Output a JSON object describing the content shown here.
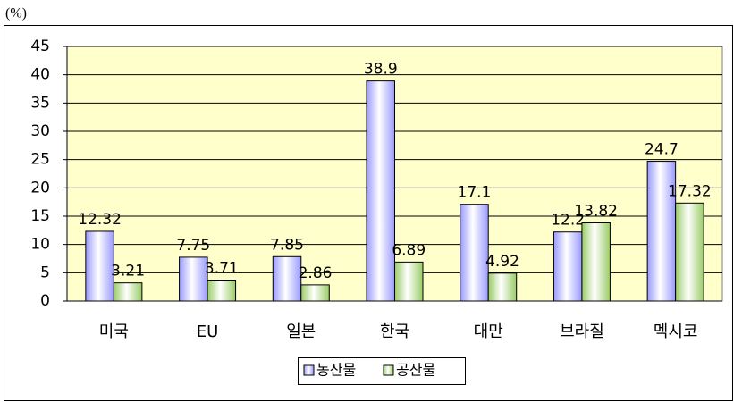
{
  "chart_data": {
    "type": "bar",
    "y_unit": "(%)",
    "categories": [
      "미국",
      "EU",
      "일본",
      "한국",
      "대만",
      "브라질",
      "멕시코"
    ],
    "series": [
      {
        "name": "농산물",
        "color": "#9999ff",
        "values": [
          12.32,
          7.75,
          7.85,
          38.9,
          17.1,
          12.2,
          24.7
        ]
      },
      {
        "name": "공산물",
        "color": "#99cc66",
        "values": [
          3.21,
          3.71,
          2.86,
          6.89,
          4.92,
          13.82,
          17.32
        ]
      }
    ],
    "ylim": [
      0,
      45
    ],
    "yticks": [
      0,
      5,
      10,
      15,
      20,
      25,
      30,
      35,
      40,
      45
    ],
    "grid": true,
    "plot_background": "#ffffcc",
    "legend": "bottom"
  }
}
